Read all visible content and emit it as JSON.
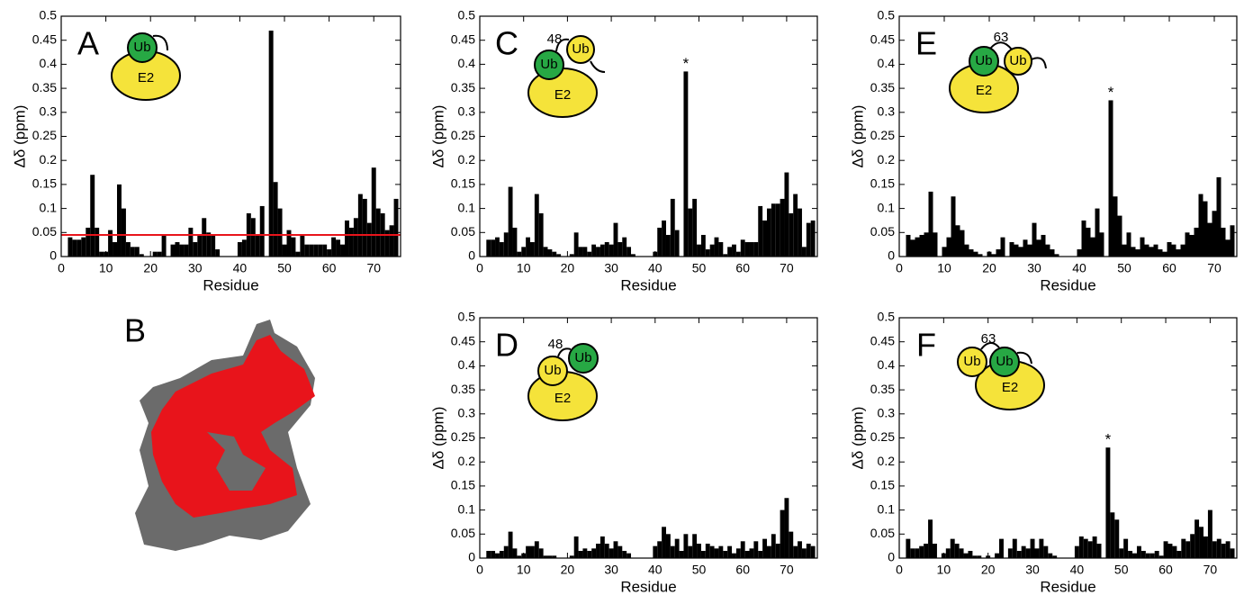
{
  "chart_data": [
    {
      "type": "bar",
      "panel": "A",
      "xlabel": "Residue",
      "ylabel": "Δδ (ppm)",
      "color": "#000000",
      "icon_texts": [
        "Ub",
        "E2"
      ],
      "threshold": {
        "value": 0.045,
        "color": "#e8141b"
      },
      "xlim": [
        0,
        76
      ],
      "xticks": [
        0,
        10,
        20,
        30,
        40,
        50,
        60,
        70
      ],
      "ylim": [
        0,
        0.5
      ],
      "yticks": [
        0,
        0.05,
        0.1,
        0.15,
        0.2,
        0.25,
        0.3,
        0.35,
        0.4,
        0.45,
        0.5
      ],
      "x": [
        1,
        2,
        3,
        4,
        5,
        6,
        7,
        8,
        9,
        10,
        11,
        12,
        13,
        14,
        15,
        16,
        17,
        18,
        19,
        20,
        21,
        22,
        23,
        24,
        25,
        26,
        27,
        28,
        29,
        30,
        31,
        32,
        33,
        34,
        35,
        36,
        37,
        38,
        39,
        40,
        41,
        42,
        43,
        44,
        45,
        46,
        47,
        48,
        49,
        50,
        51,
        52,
        53,
        54,
        55,
        56,
        57,
        58,
        59,
        60,
        61,
        62,
        63,
        64,
        65,
        66,
        67,
        68,
        69,
        70,
        71,
        72,
        73,
        74,
        75,
        76
      ],
      "values": [
        0,
        0.04,
        0.035,
        0.035,
        0.04,
        0.06,
        0.17,
        0.06,
        0.01,
        0.01,
        0.055,
        0.03,
        0.15,
        0.1,
        0.03,
        0.02,
        0.02,
        0.005,
        0,
        0,
        0.01,
        0.01,
        0.045,
        0,
        0.025,
        0.03,
        0.025,
        0.025,
        0.06,
        0.03,
        0.045,
        0.08,
        0.05,
        0.045,
        0.015,
        0,
        0,
        0,
        0,
        0.03,
        0.035,
        0.09,
        0.08,
        0.045,
        0.105,
        0,
        0.47,
        0.155,
        0.1,
        0.025,
        0.055,
        0.04,
        0.01,
        0.045,
        0.025,
        0.025,
        0.025,
        0.025,
        0.025,
        0.015,
        0.04,
        0.035,
        0.025,
        0.075,
        0.06,
        0.08,
        0.13,
        0.12,
        0.07,
        0.185,
        0.1,
        0.09,
        0.055,
        0.065,
        0.12,
        0
      ]
    },
    {
      "type": "bar",
      "panel": "C",
      "xlabel": "Residue",
      "ylabel": "Δδ (ppm)",
      "color": "#000000",
      "icon_texts": [
        "48",
        "Ub",
        "Ub",
        "E2"
      ],
      "annotation": {
        "text": "*",
        "x": 47
      },
      "xlim": [
        0,
        77
      ],
      "xticks": [
        0,
        10,
        20,
        30,
        40,
        50,
        60,
        70
      ],
      "ylim": [
        0,
        0.5
      ],
      "yticks": [
        0,
        0.05,
        0.1,
        0.15,
        0.2,
        0.25,
        0.3,
        0.35,
        0.4,
        0.45,
        0.5
      ],
      "x": [
        1,
        2,
        3,
        4,
        5,
        6,
        7,
        8,
        9,
        10,
        11,
        12,
        13,
        14,
        15,
        16,
        17,
        18,
        19,
        20,
        21,
        22,
        23,
        24,
        25,
        26,
        27,
        28,
        29,
        30,
        31,
        32,
        33,
        34,
        35,
        36,
        37,
        38,
        39,
        40,
        41,
        42,
        43,
        44,
        45,
        46,
        47,
        48,
        49,
        50,
        51,
        52,
        53,
        54,
        55,
        56,
        57,
        58,
        59,
        60,
        61,
        62,
        63,
        64,
        65,
        66,
        67,
        68,
        69,
        70,
        71,
        72,
        73,
        74,
        75,
        76
      ],
      "values": [
        0,
        0.035,
        0.035,
        0.04,
        0.03,
        0.05,
        0.145,
        0.06,
        0.01,
        0.02,
        0.04,
        0.03,
        0.13,
        0.09,
        0.02,
        0.015,
        0.01,
        0.005,
        0,
        0,
        0.005,
        0.05,
        0.02,
        0.02,
        0.01,
        0.025,
        0.02,
        0.025,
        0.03,
        0.025,
        0.07,
        0.03,
        0.04,
        0.02,
        0.005,
        0,
        0,
        0,
        0,
        0.01,
        0.06,
        0.075,
        0.045,
        0.12,
        0.055,
        0,
        0.385,
        0.1,
        0.12,
        0.025,
        0.045,
        0.015,
        0.025,
        0.04,
        0.03,
        0.005,
        0.02,
        0.025,
        0.01,
        0.035,
        0.03,
        0.03,
        0.03,
        0.105,
        0.075,
        0.1,
        0.11,
        0.11,
        0.12,
        0.175,
        0.09,
        0.13,
        0.1,
        0.02,
        0.07,
        0.075
      ]
    },
    {
      "type": "bar",
      "panel": "E",
      "xlabel": "Residue",
      "ylabel": "Δδ (ppm)",
      "color": "#000000",
      "icon_texts": [
        "63",
        "Ub",
        "Ub",
        "E2"
      ],
      "annotation": {
        "text": "*",
        "x": 47
      },
      "xlim": [
        0,
        75
      ],
      "xticks": [
        0,
        10,
        20,
        30,
        40,
        50,
        60,
        70
      ],
      "ylim": [
        0,
        0.5
      ],
      "yticks": [
        0,
        0.05,
        0.1,
        0.15,
        0.2,
        0.25,
        0.3,
        0.35,
        0.4,
        0.45,
        0.5
      ],
      "x": [
        1,
        2,
        3,
        4,
        5,
        6,
        7,
        8,
        9,
        10,
        11,
        12,
        13,
        14,
        15,
        16,
        17,
        18,
        19,
        20,
        21,
        22,
        23,
        24,
        25,
        26,
        27,
        28,
        29,
        30,
        31,
        32,
        33,
        34,
        35,
        36,
        37,
        38,
        39,
        40,
        41,
        42,
        43,
        44,
        45,
        46,
        47,
        48,
        49,
        50,
        51,
        52,
        53,
        54,
        55,
        56,
        57,
        58,
        59,
        60,
        61,
        62,
        63,
        64,
        65,
        66,
        67,
        68,
        69,
        70,
        71,
        72,
        73,
        74,
        75
      ],
      "values": [
        0,
        0.045,
        0.035,
        0.04,
        0.045,
        0.05,
        0.135,
        0.05,
        0,
        0.02,
        0.04,
        0.125,
        0.065,
        0.055,
        0.025,
        0.015,
        0.01,
        0.005,
        0,
        0.01,
        0.005,
        0.015,
        0.04,
        0,
        0.03,
        0.025,
        0.02,
        0.035,
        0.025,
        0.07,
        0.035,
        0.045,
        0.025,
        0.015,
        0.005,
        0,
        0,
        0,
        0,
        0.015,
        0.075,
        0.06,
        0.04,
        0.1,
        0.05,
        0,
        0.325,
        0.125,
        0.085,
        0.025,
        0.05,
        0.02,
        0.015,
        0.04,
        0.025,
        0.02,
        0.025,
        0.015,
        0.01,
        0.03,
        0.025,
        0.015,
        0.025,
        0.05,
        0.045,
        0.06,
        0.13,
        0.115,
        0.07,
        0.095,
        0.165,
        0.06,
        0.035,
        0.065,
        0
      ]
    },
    {
      "type": "bar",
      "panel": "D",
      "xlabel": "Residue",
      "ylabel": "Δδ (ppm)",
      "color": "#000000",
      "icon_texts": [
        "48",
        "Ub",
        "Ub",
        "E2"
      ],
      "xlim": [
        0,
        77
      ],
      "xticks": [
        0,
        10,
        20,
        30,
        40,
        50,
        60,
        70
      ],
      "ylim": [
        0,
        0.5
      ],
      "yticks": [
        0,
        0.05,
        0.1,
        0.15,
        0.2,
        0.25,
        0.3,
        0.35,
        0.4,
        0.45,
        0.5
      ],
      "x": [
        1,
        2,
        3,
        4,
        5,
        6,
        7,
        8,
        9,
        10,
        11,
        12,
        13,
        14,
        15,
        16,
        17,
        18,
        19,
        20,
        21,
        22,
        23,
        24,
        25,
        26,
        27,
        28,
        29,
        30,
        31,
        32,
        33,
        34,
        35,
        36,
        37,
        38,
        39,
        40,
        41,
        42,
        43,
        44,
        45,
        46,
        47,
        48,
        49,
        50,
        51,
        52,
        53,
        54,
        55,
        56,
        57,
        58,
        59,
        60,
        61,
        62,
        63,
        64,
        65,
        66,
        67,
        68,
        69,
        70,
        71,
        72,
        73,
        74,
        75,
        76
      ],
      "values": [
        0,
        0.015,
        0.015,
        0.01,
        0.015,
        0.025,
        0.055,
        0.02,
        0.005,
        0.01,
        0.025,
        0.025,
        0.035,
        0.02,
        0.005,
        0.005,
        0.005,
        0,
        0,
        0,
        0.005,
        0.045,
        0.015,
        0.02,
        0.015,
        0.02,
        0.03,
        0.045,
        0.03,
        0.02,
        0.035,
        0.025,
        0.015,
        0.01,
        0,
        0,
        0,
        0,
        0,
        0.025,
        0.035,
        0.065,
        0.05,
        0.025,
        0.04,
        0.015,
        0.05,
        0.025,
        0.05,
        0.03,
        0.015,
        0.03,
        0.025,
        0.02,
        0.025,
        0.015,
        0.025,
        0.01,
        0.02,
        0.035,
        0.015,
        0.02,
        0.035,
        0.015,
        0.04,
        0.025,
        0.05,
        0.03,
        0.1,
        0.125,
        0.055,
        0.025,
        0.035,
        0.02,
        0.03,
        0.025
      ]
    },
    {
      "type": "bar",
      "panel": "F",
      "xlabel": "Residue",
      "ylabel": "Δδ (ppm)",
      "color": "#000000",
      "icon_texts": [
        "63",
        "Ub",
        "Ub",
        "E2"
      ],
      "annotation": {
        "text": "*",
        "x": 47
      },
      "xlim": [
        0,
        76
      ],
      "xticks": [
        0,
        10,
        20,
        30,
        40,
        50,
        60,
        70
      ],
      "ylim": [
        0,
        0.5
      ],
      "yticks": [
        0,
        0.05,
        0.1,
        0.15,
        0.2,
        0.25,
        0.3,
        0.35,
        0.4,
        0.45,
        0.5
      ],
      "x": [
        1,
        2,
        3,
        4,
        5,
        6,
        7,
        8,
        9,
        10,
        11,
        12,
        13,
        14,
        15,
        16,
        17,
        18,
        19,
        20,
        21,
        22,
        23,
        24,
        25,
        26,
        27,
        28,
        29,
        30,
        31,
        32,
        33,
        34,
        35,
        36,
        37,
        38,
        39,
        40,
        41,
        42,
        43,
        44,
        45,
        46,
        47,
        48,
        49,
        50,
        51,
        52,
        53,
        54,
        55,
        56,
        57,
        58,
        59,
        60,
        61,
        62,
        63,
        64,
        65,
        66,
        67,
        68,
        69,
        70,
        71,
        72,
        73,
        74,
        75,
        76
      ],
      "values": [
        0,
        0.04,
        0.02,
        0.02,
        0.025,
        0.03,
        0.08,
        0.03,
        0,
        0.01,
        0.02,
        0.04,
        0.03,
        0.02,
        0.01,
        0.015,
        0.005,
        0.005,
        0,
        0.005,
        0,
        0.01,
        0.04,
        0,
        0.02,
        0.04,
        0.015,
        0.025,
        0.02,
        0.04,
        0.02,
        0.04,
        0.025,
        0.01,
        0.005,
        0,
        0,
        0,
        0,
        0.025,
        0.045,
        0.04,
        0.035,
        0.045,
        0.03,
        0,
        0.23,
        0.095,
        0.08,
        0.02,
        0.04,
        0.015,
        0.01,
        0.025,
        0.015,
        0.01,
        0.01,
        0.015,
        0.005,
        0.035,
        0.03,
        0.025,
        0.015,
        0.04,
        0.035,
        0.05,
        0.08,
        0.065,
        0.045,
        0.1,
        0.035,
        0.04,
        0.03,
        0.035,
        0.02,
        0
      ]
    }
  ],
  "image_panel": {
    "panel": "B"
  }
}
